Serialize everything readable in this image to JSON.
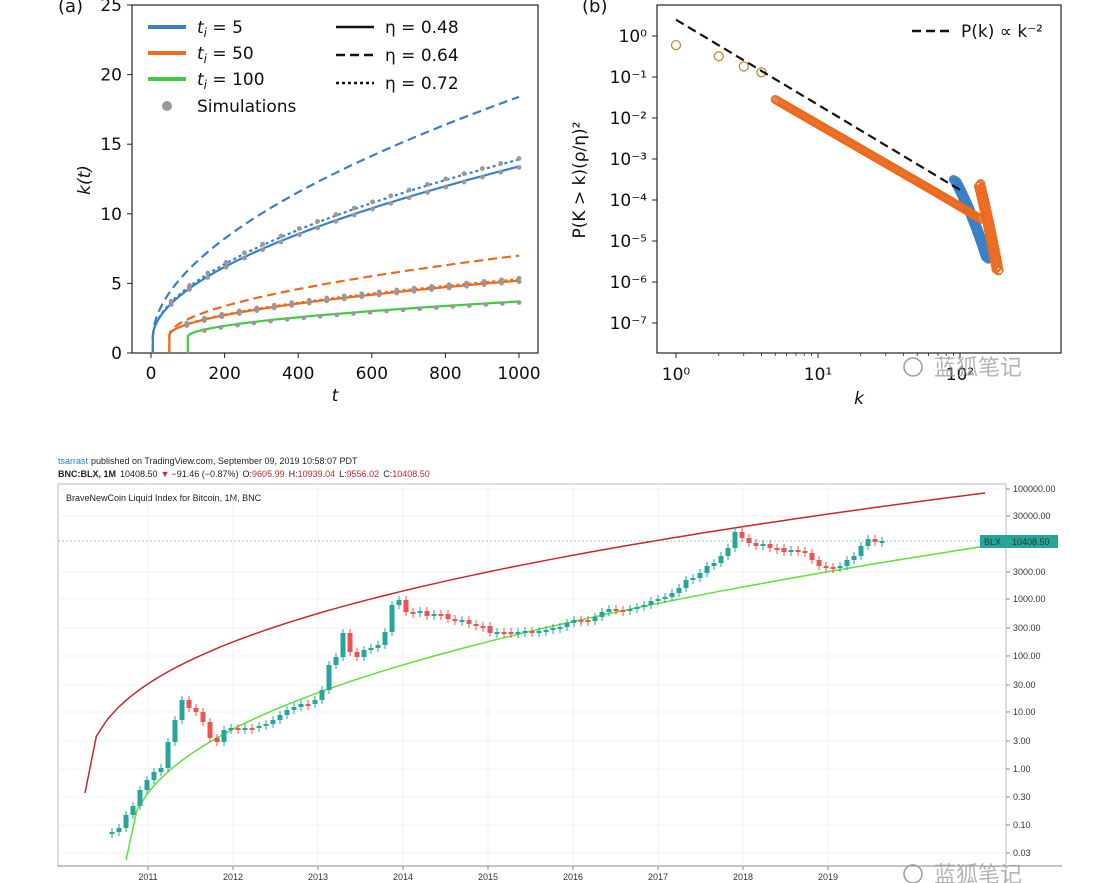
{
  "chart_data": [
    {
      "panel": "(a)",
      "type": "line",
      "xlabel": "t",
      "ylabel": "k(t)",
      "xlim": [
        0,
        1000
      ],
      "ylim": [
        0,
        25
      ],
      "xticks": [
        "0",
        "200",
        "400",
        "600",
        "800",
        "1000"
      ],
      "yticks": [
        "0",
        "5",
        "10",
        "15",
        "20",
        "25"
      ],
      "legend_left": [
        {
          "label": "t_i = 5",
          "color": "#3a80c6"
        },
        {
          "label": "t_i = 50",
          "color": "#ec6a1f"
        },
        {
          "label": "t_i = 100",
          "color": "#3fcc3f"
        },
        {
          "label": "Simulations",
          "color": "#999999"
        }
      ],
      "legend_right": [
        {
          "label": "η = 0.48",
          "style": "solid"
        },
        {
          "label": "η = 0.64",
          "style": "dashed"
        },
        {
          "label": "η = 0.72",
          "style": "dotted"
        }
      ],
      "series": [
        {
          "t_i": 5,
          "eta": 0.48,
          "style": "solid",
          "color": "#3a80c6",
          "end_value": 13.4
        },
        {
          "t_i": 5,
          "eta": 0.64,
          "style": "dashed",
          "color": "#3a80c6",
          "end_value": 18.4
        },
        {
          "t_i": 5,
          "eta": 0.72,
          "style": "dotted",
          "color": "#3a80c6",
          "end_value": 13.9
        },
        {
          "t_i": 50,
          "eta": 0.48,
          "style": "solid",
          "color": "#ec6a1f",
          "end_value": 5.2
        },
        {
          "t_i": 50,
          "eta": 0.64,
          "style": "dashed",
          "color": "#ec6a1f",
          "end_value": 7.0
        },
        {
          "t_i": 50,
          "eta": 0.72,
          "style": "dotted",
          "color": "#ec6a1f",
          "end_value": 5.3
        },
        {
          "t_i": 100,
          "eta": 0.48,
          "style": "solid",
          "color": "#3fcc3f",
          "end_value": 3.7
        }
      ]
    },
    {
      "panel": "(b)",
      "type": "scatter",
      "xscale": "log",
      "yscale": "log",
      "xlabel": "k",
      "ylabel": "P(K > k)(ρ/η)²",
      "xticks": [
        "10⁰",
        "10¹",
        "10²"
      ],
      "yticks": [
        "10⁰",
        "10⁻¹",
        "10⁻²",
        "10⁻³",
        "10⁻⁴",
        "10⁻⁵",
        "10⁻⁶",
        "10⁻⁷"
      ],
      "legend": "P(k) ∝ k⁻²",
      "reference_line": {
        "slope": -2,
        "k_range": [
          1,
          100
        ]
      },
      "first_points": [
        {
          "k": 1,
          "p": 0.6
        },
        {
          "k": 2,
          "p": 0.32
        },
        {
          "k": 3,
          "p": 0.18
        },
        {
          "k": 4,
          "p": 0.13
        }
      ],
      "colors": {
        "orange": "#ec6a1f",
        "blue": "#3a80c6",
        "open_marker": "#c48a3a"
      }
    },
    {
      "type": "candlestick",
      "yscale": "log",
      "header": {
        "author": "tsarrast",
        "published": "published on TradingView.com, September 09, 2019 10:58:07 PDT",
        "symbol": "BNC:BLX, 1M",
        "last": "10408.50",
        "change": "−91.46 (−0.87%)",
        "o_label": "O:",
        "o": "9605.99",
        "h_label": "H:",
        "h": "10939.04",
        "l_label": "L:",
        "l": "9556.02",
        "c_label": "C:",
        "c": "10408.50"
      },
      "title": "BraveNewCoin Liquid Index for Bitcoin, 1M, BNC",
      "price_tag_symbol": "BLX",
      "price_tag_value": "10408.50",
      "yticks": [
        "100000.00",
        "30000.00",
        "3000.00",
        "1000.00",
        "300.00",
        "100.00",
        "30.00",
        "10.00",
        "3.00",
        "1.00",
        "0.30",
        "0.10",
        "0.03"
      ],
      "xticks": [
        "2011",
        "2012",
        "2013",
        "2014",
        "2015",
        "2016",
        "2017",
        "2018",
        "2019"
      ],
      "band_colors": {
        "upper": "#c8272d",
        "lower": "#5be33a"
      },
      "candle_colors": {
        "up": "#26a69a",
        "down": "#ef5350"
      }
    }
  ],
  "watermark": "蓝狐笔记"
}
